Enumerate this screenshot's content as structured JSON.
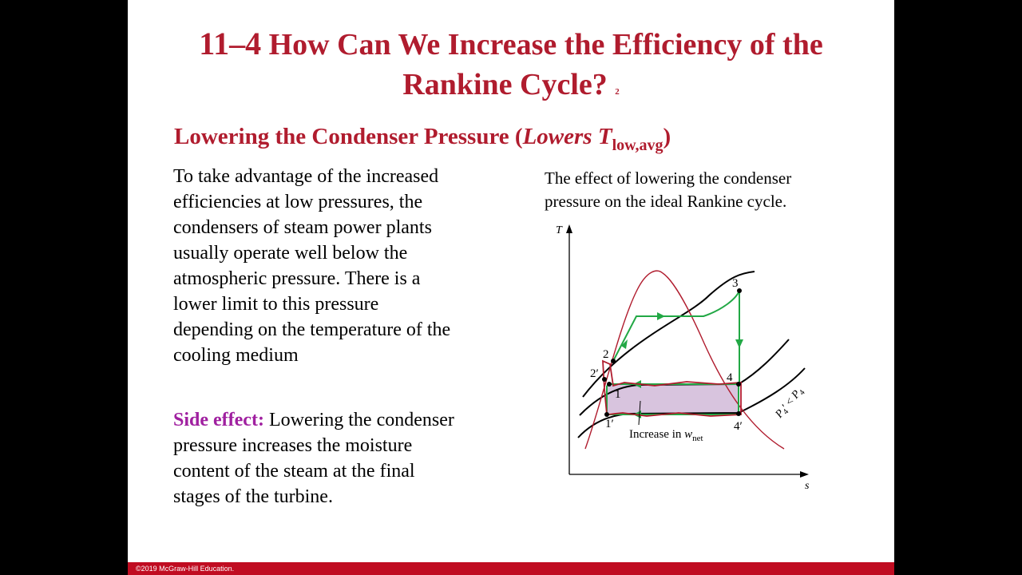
{
  "title": {
    "number": "11–4",
    "line1": "How Can We Increase the Efficiency of the",
    "line2": "Rankine Cycle?",
    "superscript": "2"
  },
  "subtitle": {
    "main": "Lowering the Condenser Pressure (",
    "italic": "Lowers T",
    "subscript": "low,avg",
    "close": ")"
  },
  "body": "To take advantage of the increased efficiencies at low pressures, the condensers of steam power plants usually operate well below the atmospheric pressure. There is a lower limit to this pressure depending on the temperature of the cooling medium",
  "side_effect": {
    "label": "Side effect:",
    "text": "Lowering the condenser pressure increases the moisture content of the steam at the final stages of the turbine."
  },
  "caption": "The effect of lowering the condenser pressure on the ideal Rankine cycle.",
  "diagram": {
    "axis_y": "T",
    "axis_x": "s",
    "points": {
      "p1": "1",
      "p1prime": "1′",
      "p2": "2",
      "p2prime": "2′",
      "p3": "3",
      "p4": "4",
      "p4prime": "4′"
    },
    "annotation_prefix": "Increase in ",
    "annotation_var": "w",
    "annotation_sub": "net",
    "pressure_label": {
      "P": "P",
      "primed_sub": "4",
      "prime": "′",
      "lt": " < ",
      "sub": "4"
    },
    "colors": {
      "dome": "#b01c2e",
      "cycle": "#22a845",
      "fill": "#d8c4de",
      "isobar": "#000000"
    }
  },
  "footer": "©2019 McGraw-Hill Education."
}
